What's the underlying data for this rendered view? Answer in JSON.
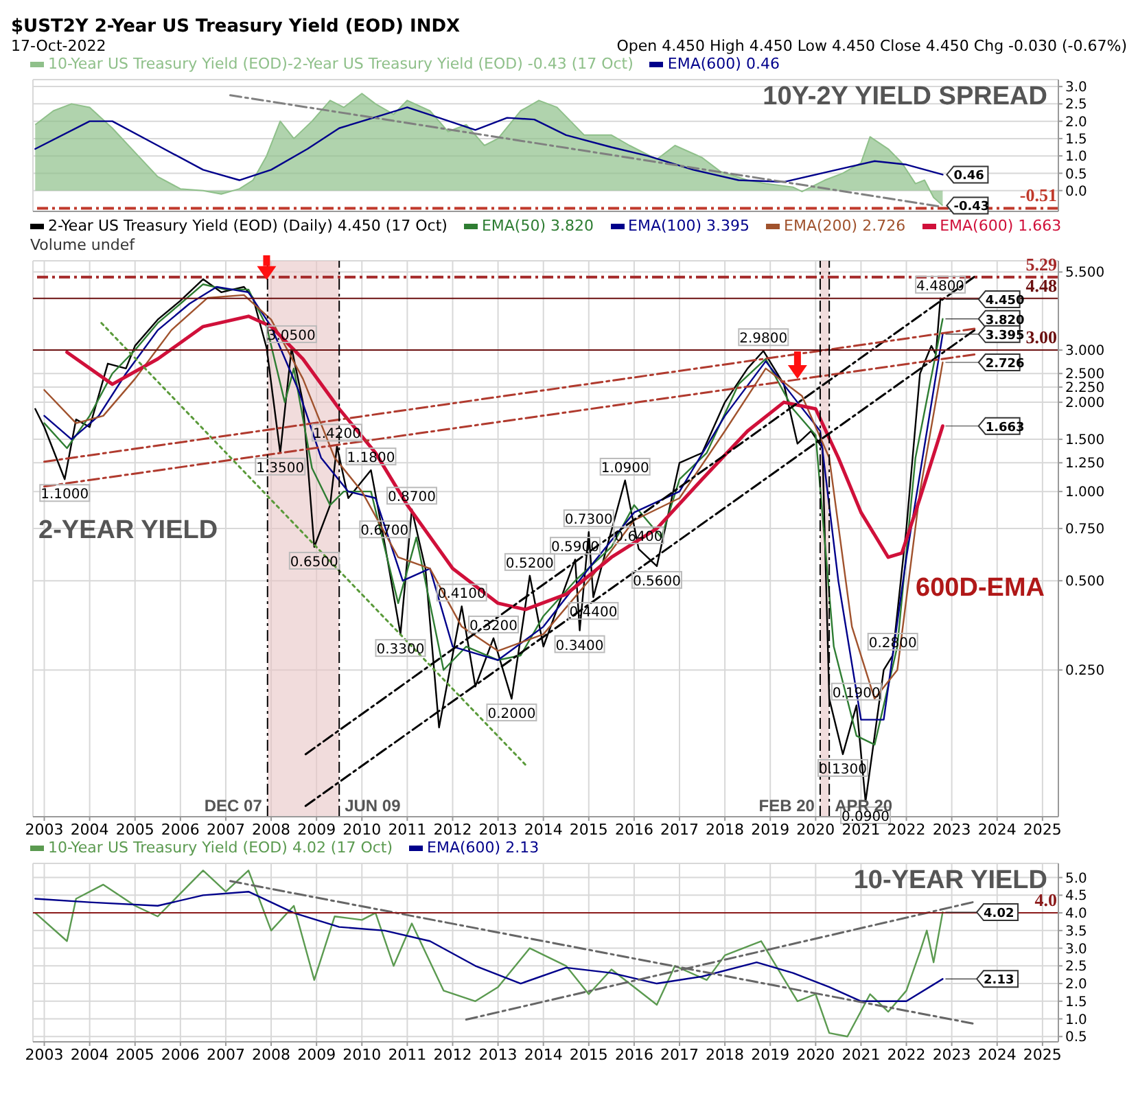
{
  "chart_data": [
    {
      "type": "line",
      "title": "10Y-2Y YIELD SPREAD",
      "xlim": [
        2002.75,
        2025.35
      ],
      "xticks": [
        2003,
        2004,
        2005,
        2006,
        2007,
        2008,
        2009,
        2010,
        2011,
        2012,
        2013,
        2014,
        2015,
        2016,
        2017,
        2018,
        2019,
        2020,
        2021,
        2022,
        2023,
        2024,
        2025
      ],
      "ylim": [
        -0.6,
        3.2
      ],
      "yticks": [
        {
          "value": 0,
          "label": "0.0"
        },
        {
          "value": 0.5,
          "label": "0.5"
        },
        {
          "value": 1,
          "label": "1.0"
        },
        {
          "value": 1.5,
          "label": "1.5"
        },
        {
          "value": 2,
          "label": "2.0"
        },
        {
          "value": 2.5,
          "label": "2.5"
        },
        {
          "value": 3,
          "label": "3.0"
        }
      ],
      "tick_labels": "y",
      "grid": true,
      "legend": "top left",
      "series": [
        {
          "type": "area",
          "name": "10-Year US Treasury Yield (EOD)-2-Year US Treasury Yield (EOD) -0.43 (17 Oct)",
          "color": "#8fc08a",
          "x": [
            2002.8,
            2003.2,
            2003.6,
            2004.0,
            2004.5,
            2005.0,
            2005.5,
            2006.0,
            2006.5,
            2006.9,
            2007.3,
            2007.6,
            2007.9,
            2008.2,
            2008.5,
            2008.9,
            2009.3,
            2009.6,
            2010.0,
            2010.3,
            2010.7,
            2011.0,
            2011.5,
            2011.9,
            2012.3,
            2012.7,
            2013.0,
            2013.5,
            2013.9,
            2014.3,
            2014.9,
            2015.5,
            2015.9,
            2016.5,
            2016.9,
            2017.5,
            2017.9,
            2018.5,
            2018.9,
            2019.5,
            2019.7,
            2020.2,
            2020.6,
            2021.0,
            2021.2,
            2021.6,
            2021.9,
            2022.2,
            2022.4,
            2022.6,
            2022.8
          ],
          "values": [
            1.9,
            2.3,
            2.5,
            2.4,
            1.8,
            1.1,
            0.4,
            0.05,
            0.0,
            -0.1,
            0.05,
            0.3,
            1.0,
            2.0,
            1.5,
            2.0,
            2.6,
            2.4,
            2.8,
            2.5,
            2.2,
            2.6,
            2.3,
            1.7,
            1.9,
            1.3,
            1.5,
            2.3,
            2.6,
            2.4,
            1.6,
            1.6,
            1.3,
            0.9,
            1.3,
            0.95,
            0.55,
            0.3,
            0.2,
            0.1,
            -0.03,
            0.3,
            0.5,
            0.8,
            1.55,
            1.2,
            0.8,
            0.2,
            0.3,
            -0.2,
            -0.43
          ]
        },
        {
          "type": "line",
          "name": "EMA(600) 0.46",
          "color": "#00008b",
          "x": [
            2002.8,
            2004.0,
            2004.5,
            2005.5,
            2006.5,
            2007.3,
            2008.0,
            2008.8,
            2009.5,
            2010.5,
            2011.0,
            2011.7,
            2012.5,
            2013.2,
            2013.8,
            2014.5,
            2015.5,
            2016.3,
            2017.3,
            2018.3,
            2019.3,
            2020.3,
            2021.3,
            2022.0,
            2022.8
          ],
          "values": [
            1.2,
            2.0,
            2.0,
            1.3,
            0.6,
            0.3,
            0.6,
            1.2,
            1.8,
            2.2,
            2.4,
            2.1,
            1.75,
            2.1,
            2.05,
            1.6,
            1.25,
            1.0,
            0.6,
            0.3,
            0.25,
            0.55,
            0.85,
            0.75,
            0.46
          ]
        },
        {
          "type": "line",
          "color": "#808080",
          "line_style": "dashed",
          "x": [
            2007.1,
            2022.7
          ],
          "values": [
            2.75,
            -0.45
          ]
        }
      ],
      "ref_lines": [
        {
          "axis": "y",
          "value": -0.51,
          "label": "-0.51",
          "color": "#c0392b",
          "line_style": "dashed"
        }
      ],
      "annotations": [
        "$UST2Y 2-Year US Treasury Yield (EOD) INDX",
        "17-Oct-2022",
        "Open 4.450 High 4.450 Low 4.450 Close 4.450 Chg -0.030 (-0.67%)",
        {
          "text": "0.46",
          "x": 2022.8,
          "y": 0.46
        },
        {
          "text": "-0.43",
          "x": 2022.8,
          "y": -0.43
        }
      ]
    },
    {
      "type": "line",
      "title": "2-YEAR YIELD",
      "log": "y",
      "xlim": [
        2002.75,
        2025.35
      ],
      "xticks": [
        2003,
        2004,
        2005,
        2006,
        2007,
        2008,
        2009,
        2010,
        2011,
        2012,
        2013,
        2014,
        2015,
        2016,
        2017,
        2018,
        2019,
        2020,
        2021,
        2022,
        2023,
        2024,
        2025
      ],
      "ylim": [
        0.08,
        6.0
      ],
      "yticks": [
        {
          "value": 0.25,
          "label": "0.250"
        },
        {
          "value": 0.5,
          "label": "0.500"
        },
        {
          "value": 0.75,
          "label": "0.750"
        },
        {
          "value": 1,
          "label": "1.000"
        },
        {
          "value": 1.25,
          "label": "1.250"
        },
        {
          "value": 1.5,
          "label": "1.500"
        },
        {
          "value": 2,
          "label": "2.000"
        },
        {
          "value": 2.25,
          "label": "2.250"
        },
        {
          "value": 2.5,
          "label": "2.500"
        },
        {
          "value": 3,
          "label": "3.000"
        },
        {
          "value": 5.5,
          "label": "5.500"
        }
      ],
      "grid": true,
      "legend": "top left",
      "series": [
        {
          "name": "2-Year US Treasury Yield (EOD) (Daily) 4.450 (17 Oct)",
          "color": "#000000",
          "x": [
            2002.8,
            2003.0,
            2003.45,
            2003.7,
            2004.0,
            2004.4,
            2004.8,
            2005.0,
            2005.5,
            2006.0,
            2006.5,
            2006.9,
            2007.4,
            2007.6,
            2007.9,
            2008.2,
            2008.45,
            2008.7,
            2008.95,
            2009.3,
            2009.45,
            2009.7,
            2010.2,
            2010.5,
            2010.85,
            2011.1,
            2011.4,
            2011.7,
            2012.2,
            2012.5,
            2012.9,
            2013.3,
            2013.7,
            2014.0,
            2014.7,
            2014.8,
            2015.0,
            2015.1,
            2015.8,
            2016.1,
            2016.5,
            2017.0,
            2017.5,
            2018.0,
            2018.5,
            2018.85,
            2019.3,
            2019.6,
            2019.9,
            2020.15,
            2020.3,
            2020.6,
            2020.9,
            2021.1,
            2021.5,
            2021.7,
            2022.0,
            2022.3,
            2022.55,
            2022.65,
            2022.75,
            2022.8
          ],
          "values": [
            1.9,
            1.65,
            1.1,
            1.75,
            1.65,
            2.7,
            2.6,
            3.1,
            3.8,
            4.4,
            5.2,
            4.7,
            4.9,
            4.5,
            3.05,
            1.35,
            3.05,
            2.0,
            0.65,
            0.9,
            1.42,
            0.95,
            1.18,
            0.67,
            0.33,
            0.87,
            0.55,
            0.16,
            0.41,
            0.22,
            0.32,
            0.2,
            0.52,
            0.3,
            0.59,
            0.34,
            0.73,
            0.44,
            1.09,
            0.64,
            0.56,
            1.25,
            1.35,
            2.0,
            2.6,
            2.98,
            2.3,
            1.45,
            1.6,
            1.4,
            0.2,
            0.13,
            0.19,
            0.09,
            0.25,
            0.28,
            0.75,
            2.5,
            3.1,
            2.9,
            4.48,
            4.45
          ]
        },
        {
          "name": "EMA(50) 3.820",
          "color": "#2e7d32",
          "x": [
            2003.0,
            2003.5,
            2004.0,
            2004.5,
            2005.0,
            2005.5,
            2006.0,
            2006.5,
            2007.0,
            2007.5,
            2007.9,
            2008.3,
            2008.5,
            2008.9,
            2009.3,
            2009.6,
            2010.2,
            2010.8,
            2011.2,
            2011.8,
            2012.3,
            2013.0,
            2013.5,
            2014.0,
            2014.7,
            2015.5,
            2016.0,
            2016.6,
            2017.0,
            2017.6,
            2018.3,
            2018.9,
            2019.5,
            2020.0,
            2020.4,
            2020.9,
            2021.3,
            2021.8,
            2022.2,
            2022.8
          ],
          "values": [
            1.7,
            1.4,
            1.8,
            2.5,
            3.0,
            3.7,
            4.3,
            5.0,
            4.8,
            4.8,
            3.6,
            2.0,
            2.6,
            1.2,
            0.9,
            1.0,
            1.0,
            0.42,
            0.7,
            0.25,
            0.3,
            0.27,
            0.28,
            0.38,
            0.5,
            0.65,
            0.9,
            0.7,
            1.1,
            1.35,
            2.3,
            2.8,
            1.9,
            1.55,
            0.3,
            0.15,
            0.14,
            0.3,
            1.3,
            3.82
          ]
        },
        {
          "name": "EMA(100) 3.395",
          "color": "#00008b",
          "x": [
            2003.0,
            2003.6,
            2004.2,
            2004.8,
            2005.5,
            2006.2,
            2006.8,
            2007.5,
            2008.0,
            2008.6,
            2009.1,
            2009.7,
            2010.3,
            2010.9,
            2011.5,
            2012.0,
            2013.0,
            2014.0,
            2015.0,
            2016.0,
            2017.0,
            2018.0,
            2018.9,
            2019.6,
            2020.1,
            2020.5,
            2021.0,
            2021.5,
            2022.0,
            2022.8
          ],
          "values": [
            1.8,
            1.5,
            1.8,
            2.5,
            3.5,
            4.3,
            4.9,
            4.7,
            3.6,
            2.2,
            1.3,
            1.0,
            0.95,
            0.5,
            0.55,
            0.3,
            0.27,
            0.35,
            0.55,
            0.85,
            1.0,
            1.8,
            2.75,
            2.0,
            1.6,
            0.5,
            0.17,
            0.17,
            0.6,
            3.395
          ]
        },
        {
          "name": "EMA(200) 2.726",
          "color": "#a0522d",
          "x": [
            2003.0,
            2003.7,
            2004.3,
            2005.0,
            2005.8,
            2006.6,
            2007.4,
            2008.0,
            2008.7,
            2009.4,
            2010.0,
            2010.8,
            2011.5,
            2012.2,
            2013.0,
            2014.0,
            2015.0,
            2016.0,
            2017.0,
            2018.0,
            2018.9,
            2019.7,
            2020.3,
            2020.8,
            2021.3,
            2021.8,
            2022.3,
            2022.8
          ],
          "values": [
            2.2,
            1.7,
            1.8,
            2.4,
            3.5,
            4.5,
            4.6,
            3.8,
            2.4,
            1.3,
            1.0,
            0.6,
            0.55,
            0.35,
            0.29,
            0.33,
            0.5,
            0.8,
            0.95,
            1.6,
            2.6,
            2.1,
            1.3,
            0.35,
            0.2,
            0.25,
            1.0,
            2.726
          ]
        },
        {
          "name": "EMA(600) 1.663",
          "color": "#d0103a",
          "x": [
            2003.5,
            2004.5,
            2005.5,
            2006.5,
            2007.5,
            2008.0,
            2008.7,
            2009.5,
            2010.3,
            2011.0,
            2012.0,
            2013.0,
            2013.6,
            2014.5,
            2015.5,
            2016.5,
            2017.5,
            2018.5,
            2019.3,
            2020.0,
            2020.5,
            2021.0,
            2021.6,
            2021.9,
            2022.3,
            2022.8
          ],
          "values": [
            2.95,
            2.3,
            2.8,
            3.6,
            3.9,
            3.6,
            2.8,
            1.9,
            1.35,
            0.9,
            0.55,
            0.42,
            0.4,
            0.45,
            0.6,
            0.75,
            1.1,
            1.6,
            2.0,
            1.9,
            1.3,
            0.85,
            0.6,
            0.62,
            0.95,
            1.663
          ]
        },
        {
          "color": "#000000",
          "line_style": "dashed",
          "x": [
            2008.76,
            2023.5
          ],
          "values": [
            0.13,
            5.3
          ]
        },
        {
          "color": "#000000",
          "line_style": "dashed",
          "x": [
            2008.76,
            2023.5
          ],
          "values": [
            0.087,
            3.5
          ]
        },
        {
          "color": "#5a9a3a",
          "line_style": "dotted",
          "x": [
            2004.26,
            2013.6
          ],
          "values": [
            3.7,
            0.12
          ]
        },
        {
          "color": "#b03a2e",
          "line_style": "dashed",
          "x": [
            2003.0,
            2023.5
          ],
          "values": [
            1.26,
            3.54
          ]
        },
        {
          "color": "#b03a2e",
          "line_style": "dashed",
          "x": [
            2003.0,
            2023.5
          ],
          "values": [
            1.04,
            2.9
          ]
        }
      ],
      "bands": [
        {
          "axis": "x",
          "from": 2007.92,
          "to": 2009.5,
          "color": "#e8c4c4"
        },
        {
          "axis": "x",
          "from": 2020.1,
          "to": 2020.3,
          "color": "#e8c4c4"
        }
      ],
      "ref_lines": [
        {
          "axis": "y",
          "value": 5.29,
          "label": "5.29",
          "color": "#a52a2a",
          "line_style": "dashed"
        },
        {
          "axis": "y",
          "value": 4.48,
          "label": "4.48",
          "color": "#6b0f0f",
          "line_style": "solid"
        },
        {
          "axis": "y",
          "value": 3.0,
          "label": "3.00",
          "color": "#6b0f0f",
          "line_style": "solid"
        },
        {
          "axis": "x",
          "value": 2007.92,
          "label": "DEC 07",
          "color": "#000000",
          "line_style": "dashed"
        },
        {
          "axis": "x",
          "value": 2009.5,
          "label": "JUN 09",
          "color": "#000000",
          "line_style": "dashed"
        },
        {
          "axis": "x",
          "value": 2020.1,
          "label": "FEB 20",
          "color": "#000000",
          "line_style": "dashed"
        },
        {
          "axis": "x",
          "value": 2020.3,
          "label": "APR 20",
          "color": "#000000",
          "line_style": "dashed"
        }
      ],
      "annotations": [
        "Volume undef",
        "600D-EMA",
        {
          "text": "1.1000",
          "x": 2003.45,
          "y": 1.1
        },
        {
          "text": "3.0500",
          "x": 2008.45,
          "y": 3.05
        },
        {
          "text": "1.3500",
          "x": 2008.2,
          "y": 1.35
        },
        {
          "text": "0.6500",
          "x": 2008.95,
          "y": 0.65
        },
        {
          "text": "1.4200",
          "x": 2009.45,
          "y": 1.42
        },
        {
          "text": "1.1800",
          "x": 2010.2,
          "y": 1.18
        },
        {
          "text": "0.6700",
          "x": 2010.5,
          "y": 0.67
        },
        {
          "text": "0.3300",
          "x": 2010.85,
          "y": 0.33
        },
        {
          "text": "0.8700",
          "x": 2011.1,
          "y": 0.87
        },
        {
          "text": "0.4100",
          "x": 2012.2,
          "y": 0.41
        },
        {
          "text": "0.3200",
          "x": 2012.9,
          "y": 0.32
        },
        {
          "text": "0.2000",
          "x": 2013.3,
          "y": 0.2
        },
        {
          "text": "0.5200",
          "x": 2013.7,
          "y": 0.52
        },
        {
          "text": "0.5900",
          "x": 2014.7,
          "y": 0.59
        },
        {
          "text": "0.3400",
          "x": 2014.8,
          "y": 0.34
        },
        {
          "text": "0.7300",
          "x": 2015.0,
          "y": 0.73
        },
        {
          "text": "0.4400",
          "x": 2015.1,
          "y": 0.44
        },
        {
          "text": "1.0900",
          "x": 2015.8,
          "y": 1.09
        },
        {
          "text": "0.6400",
          "x": 2016.1,
          "y": 0.64
        },
        {
          "text": "0.5600",
          "x": 2016.5,
          "y": 0.56
        },
        {
          "text": "2.9800",
          "x": 2018.85,
          "y": 2.98
        },
        {
          "text": "0.1300",
          "x": 2020.6,
          "y": 0.13
        },
        {
          "text": "0.1900",
          "x": 2020.9,
          "y": 0.19
        },
        {
          "text": "0.0900",
          "x": 2021.1,
          "y": 0.09
        },
        {
          "text": "0.2800",
          "x": 2021.7,
          "y": 0.28
        },
        {
          "text": "4.4800",
          "x": 2022.75,
          "y": 4.48
        },
        {
          "text": "4.450",
          "x": 2022.8,
          "y": 4.45
        },
        {
          "text": "3.820",
          "x": 2022.8,
          "y": 3.82
        },
        {
          "text": "3.395",
          "x": 2022.8,
          "y": 3.395
        },
        {
          "text": "2.726",
          "x": 2022.8,
          "y": 2.726
        },
        {
          "text": "1.663",
          "x": 2022.8,
          "y": 1.663
        }
      ]
    },
    {
      "type": "line",
      "title": "10-YEAR YIELD",
      "xlim": [
        2002.75,
        2025.35
      ],
      "xticks": [
        2003,
        2004,
        2005,
        2006,
        2007,
        2008,
        2009,
        2010,
        2011,
        2012,
        2013,
        2014,
        2015,
        2016,
        2017,
        2018,
        2019,
        2020,
        2021,
        2022,
        2023,
        2024,
        2025
      ],
      "ylim": [
        0.35,
        5.4
      ],
      "yticks": [
        0.5,
        {
          "value": 1,
          "label": "1.0"
        },
        1.5,
        {
          "value": 2,
          "label": "2.0"
        },
        2.5,
        {
          "value": 3,
          "label": "3.0"
        },
        3.5,
        {
          "value": 4,
          "label": "4.0"
        },
        4.5,
        {
          "value": 5,
          "label": "5.0"
        }
      ],
      "grid": true,
      "legend": "top left",
      "series": [
        {
          "name": "10-Year US Treasury Yield (EOD) 4.02 (17 Oct)",
          "color": "#5b9a50",
          "x": [
            2002.8,
            2003.5,
            2003.7,
            2004.3,
            2005.0,
            2005.5,
            2006.5,
            2007.0,
            2007.5,
            2008.0,
            2008.5,
            2008.95,
            2009.4,
            2010.0,
            2010.3,
            2010.7,
            2011.1,
            2011.8,
            2012.5,
            2013.0,
            2013.7,
            2014.5,
            2015.0,
            2015.5,
            2016.5,
            2016.9,
            2017.6,
            2018.0,
            2018.8,
            2019.6,
            2020.0,
            2020.3,
            2020.7,
            2021.2,
            2021.6,
            2022.0,
            2022.3,
            2022.45,
            2022.6,
            2022.8
          ],
          "values": [
            4.0,
            3.2,
            4.4,
            4.8,
            4.2,
            3.9,
            5.2,
            4.6,
            5.2,
            3.5,
            4.2,
            2.1,
            3.9,
            3.8,
            4.0,
            2.5,
            3.7,
            1.8,
            1.5,
            1.9,
            3.0,
            2.5,
            1.7,
            2.4,
            1.4,
            2.5,
            2.1,
            2.8,
            3.2,
            1.5,
            1.7,
            0.6,
            0.5,
            1.7,
            1.2,
            1.8,
            2.9,
            3.5,
            2.6,
            4.02
          ]
        },
        {
          "name": "EMA(600) 2.13",
          "color": "#00008b",
          "x": [
            2002.8,
            2004.0,
            2005.5,
            2006.5,
            2007.5,
            2008.5,
            2009.5,
            2010.5,
            2011.5,
            2012.5,
            2013.5,
            2014.5,
            2015.5,
            2016.5,
            2017.5,
            2018.7,
            2019.5,
            2020.3,
            2021.0,
            2022.0,
            2022.8
          ],
          "values": [
            4.4,
            4.3,
            4.2,
            4.5,
            4.6,
            4.0,
            3.6,
            3.5,
            3.2,
            2.5,
            2.0,
            2.45,
            2.3,
            2.0,
            2.2,
            2.6,
            2.3,
            1.9,
            1.5,
            1.5,
            2.13
          ]
        },
        {
          "color": "#666666",
          "line_style": "dashed",
          "x": [
            2007.1,
            2023.46
          ],
          "values": [
            4.9,
            0.87
          ]
        },
        {
          "color": "#666666",
          "line_style": "dashed",
          "x": [
            2012.3,
            2023.46
          ],
          "values": [
            0.98,
            4.3
          ]
        }
      ],
      "ref_lines": [
        {
          "axis": "y",
          "value": 4.0,
          "label": "4.0",
          "color": "#8b1a1a",
          "line_style": "solid"
        }
      ],
      "annotations": [
        {
          "text": "4.02",
          "x": 2022.8,
          "y": 4.02
        },
        {
          "text": "2.13",
          "x": 2022.8,
          "y": 2.13
        }
      ]
    }
  ]
}
